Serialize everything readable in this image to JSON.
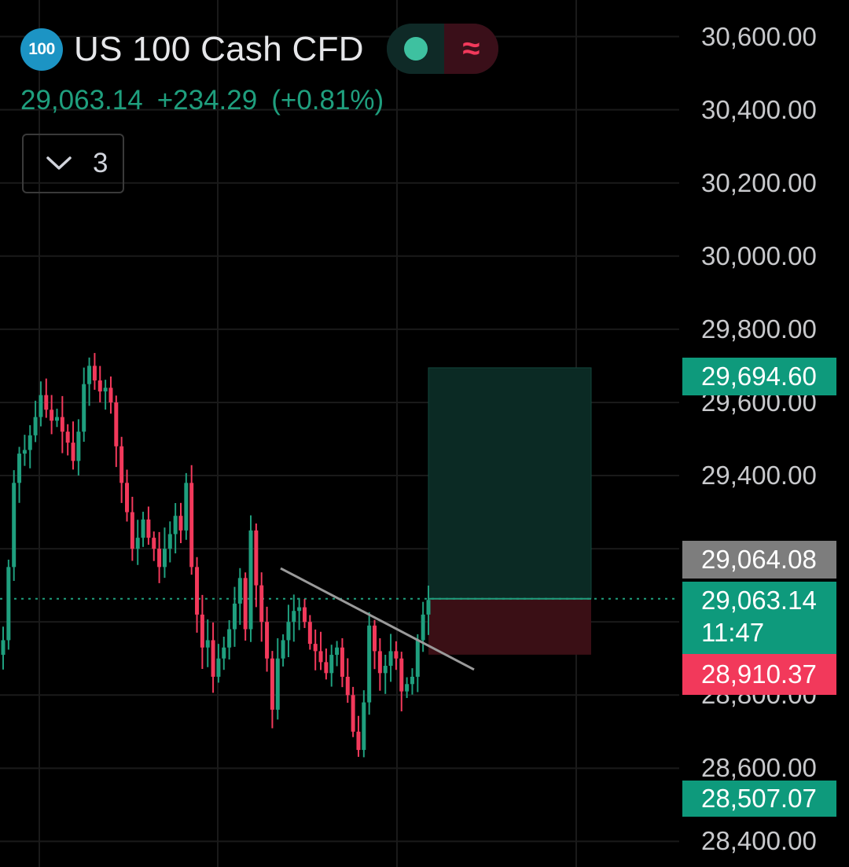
{
  "header": {
    "symbol_badge": "100",
    "title": "US 100 Cash CFD",
    "price": "29,063.14",
    "change": "+234.29",
    "change_pct": "(+0.81%)",
    "collapsed_count": "3"
  },
  "price_labels": {
    "target": "29,694.60",
    "bid": "29,064.08",
    "last": "29,063.14",
    "countdown": "11:47",
    "stop": "28,910.37",
    "low": "28,507.07"
  },
  "colors": {
    "up": "#1f9f7e",
    "down": "#f2395b",
    "grid": "#1a1a1a",
    "profit_zone": "#0b2a24",
    "loss_zone": "#3a0f15",
    "trendline": "#9a9a9a",
    "bid_label": "#808080"
  },
  "chart_data": {
    "type": "line",
    "ylim": [
      28330,
      30700
    ],
    "y_ticks": [
      "30,600.00",
      "30,400.00",
      "30,200.00",
      "30,000.00",
      "29,800.00",
      "29,600.00",
      "29,400.00",
      "28,800.00",
      "28,600.00",
      "28,400.00"
    ],
    "y_tick_values": [
      30600,
      30400,
      30200,
      30000,
      29800,
      29600,
      29400,
      28800,
      28600,
      28400
    ],
    "series": [
      {
        "values": [
          28950,
          29150,
          29380,
          29460,
          29470,
          29510,
          29560,
          29620,
          29580,
          29550,
          29560,
          29520,
          29490,
          29440,
          29520,
          29650,
          29700,
          29660,
          29630,
          29640,
          29600,
          29480,
          29380,
          29300,
          29200,
          29230,
          29280,
          29230,
          29200,
          29150,
          29200,
          29240,
          29290,
          29250,
          29380,
          29150,
          29020,
          28930,
          28950,
          28850,
          28900,
          28930,
          28980,
          29050,
          29120,
          28980,
          29250,
          29100,
          29000,
          28900,
          28760,
          28900,
          28950,
          29000,
          29030,
          29040,
          29000,
          28940,
          28920,
          28890,
          28860,
          28910,
          28930,
          28850,
          28800,
          28700,
          28650,
          28780,
          28990,
          28920,
          28860,
          28880,
          28920,
          28900,
          28810,
          28830,
          28850,
          28950,
          29020,
          29060
        ]
      }
    ],
    "trendline": {
      "from": [
        2026,
        29140
      ],
      "to": [
        2079,
        28960
      ]
    },
    "position": {
      "entry": 29063.14,
      "target": 29694.6,
      "stop": 28910.37
    }
  }
}
